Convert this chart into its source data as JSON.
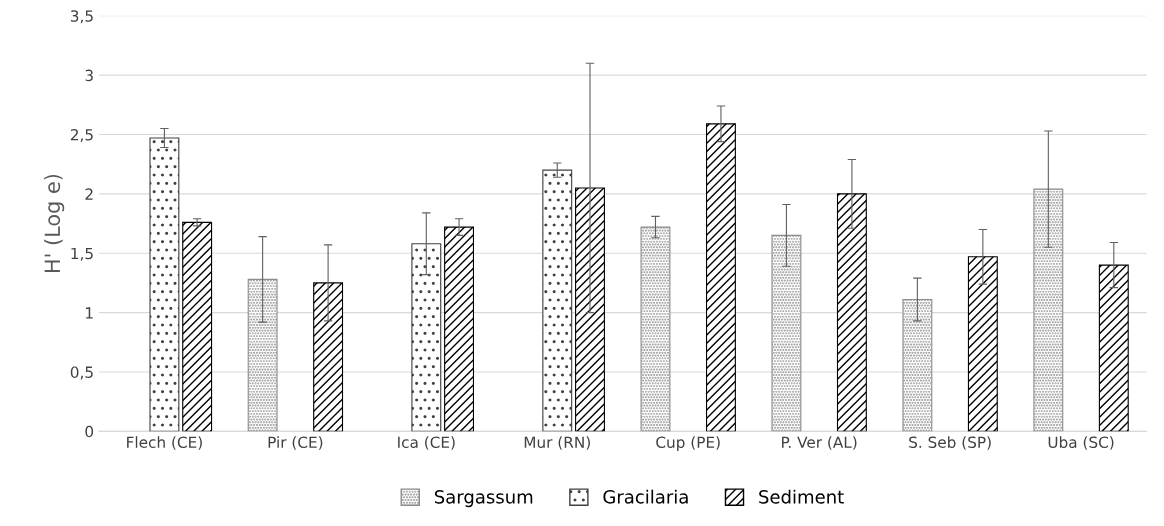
{
  "chart_data": {
    "type": "bar",
    "ylabel": "H' (Log e)",
    "categories": [
      "Flech (CE)",
      "Pir (CE)",
      "Ica (CE)",
      "Mur (RN)",
      "Cup (PE)",
      "P. Ver (AL)",
      "S. Seb (SP)",
      "Uba (SC)"
    ],
    "series": [
      {
        "name": "Sargassum",
        "color": "#8c8c8c",
        "values": [
          null,
          1.28,
          null,
          null,
          1.72,
          1.65,
          1.11,
          2.04
        ],
        "errors": [
          null,
          0.36,
          null,
          null,
          0.09,
          0.26,
          0.18,
          0.49
        ]
      },
      {
        "name": "Gracilaria",
        "color": "#404040",
        "values": [
          2.47,
          null,
          1.58,
          2.2,
          null,
          null,
          null,
          null
        ],
        "errors": [
          0.08,
          null,
          0.26,
          0.06,
          null,
          null,
          null,
          null
        ]
      },
      {
        "name": "Sediment",
        "color": "#000000",
        "values": [
          1.76,
          1.25,
          1.72,
          2.05,
          2.59,
          2.0,
          1.47,
          1.4
        ],
        "errors": [
          0.03,
          0.32,
          0.07,
          1.05,
          0.15,
          0.29,
          0.23,
          0.19
        ]
      }
    ],
    "ylim": [
      0,
      3.5
    ],
    "yticks": [
      0,
      {
        "value": 0.5,
        "label": "0,5"
      },
      1,
      {
        "value": 1.5,
        "label": "1,5"
      },
      2,
      {
        "value": 2.5,
        "label": "2,5"
      },
      3,
      {
        "value": 3.5,
        "label": "3,5"
      }
    ],
    "grid": "y",
    "legend": "bottom"
  }
}
